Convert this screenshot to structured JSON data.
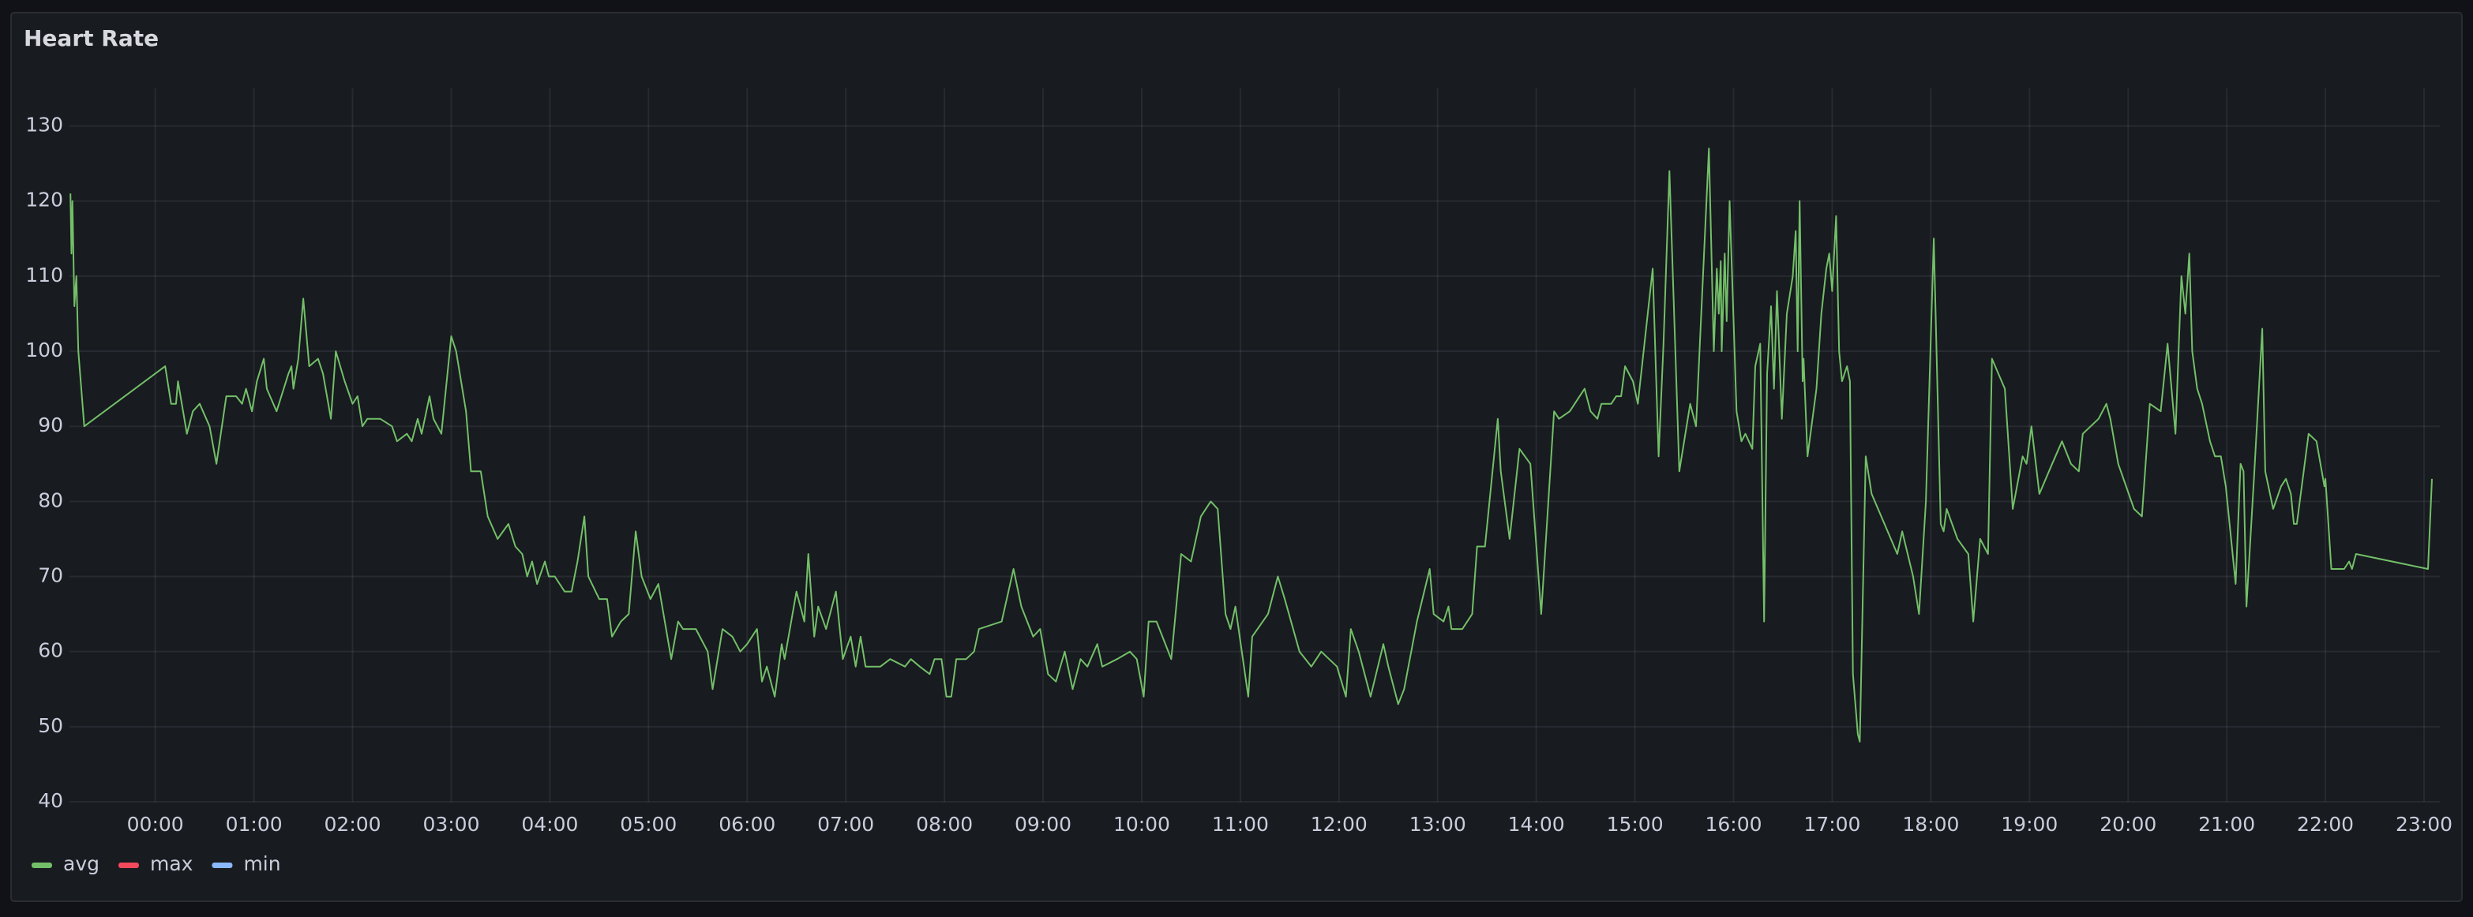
{
  "chart_data": {
    "type": "line",
    "title": "Heart Rate",
    "x": [
      -0.86,
      -0.85,
      -0.84,
      -0.82,
      -0.8,
      -0.78,
      -0.72,
      0.1,
      0.16,
      0.21,
      0.23,
      0.32,
      0.38,
      0.45,
      0.55,
      0.62,
      0.72,
      0.82,
      0.88,
      0.92,
      0.98,
      1.03,
      1.1,
      1.13,
      1.23,
      1.35,
      1.38,
      1.4,
      1.45,
      1.5,
      1.56,
      1.65,
      1.7,
      1.78,
      1.83,
      1.92,
      2.0,
      2.05,
      2.1,
      2.15,
      2.28,
      2.4,
      2.45,
      2.55,
      2.6,
      2.66,
      2.7,
      2.78,
      2.82,
      2.9,
      3.0,
      3.05,
      3.15,
      3.2,
      3.3,
      3.37,
      3.47,
      3.58,
      3.65,
      3.72,
      3.77,
      3.82,
      3.87,
      3.95,
      3.99,
      4.05,
      4.15,
      4.22,
      4.28,
      4.35,
      4.39,
      4.5,
      4.58,
      4.63,
      4.72,
      4.8,
      4.87,
      4.93,
      5.02,
      5.1,
      5.23,
      5.3,
      5.35,
      5.48,
      5.6,
      5.65,
      5.75,
      5.85,
      5.93,
      6.0,
      6.1,
      6.15,
      6.2,
      6.28,
      6.35,
      6.38,
      6.5,
      6.58,
      6.62,
      6.68,
      6.72,
      6.8,
      6.9,
      6.97,
      7.05,
      7.1,
      7.15,
      7.2,
      7.35,
      7.45,
      7.6,
      7.66,
      7.75,
      7.85,
      7.9,
      7.97,
      8.02,
      8.07,
      8.12,
      8.22,
      8.3,
      8.35,
      8.58,
      8.7,
      8.78,
      8.9,
      8.97,
      9.05,
      9.13,
      9.22,
      9.3,
      9.38,
      9.45,
      9.55,
      9.6,
      9.75,
      9.88,
      9.95,
      10.02,
      10.07,
      10.15,
      10.3,
      10.35,
      10.4,
      10.5,
      10.6,
      10.7,
      10.77,
      10.85,
      10.9,
      10.95,
      11.08,
      11.12,
      11.28,
      11.38,
      11.45,
      11.6,
      11.72,
      11.82,
      11.9,
      11.98,
      12.07,
      12.12,
      12.2,
      12.32,
      12.45,
      12.5,
      12.6,
      12.66,
      12.79,
      12.92,
      12.96,
      13.06,
      13.11,
      13.14,
      13.25,
      13.35,
      13.4,
      13.48,
      13.61,
      13.64,
      13.73,
      13.83,
      13.94,
      14.05,
      14.18,
      14.23,
      14.34,
      14.44,
      14.49,
      14.55,
      14.62,
      14.66,
      14.76,
      14.81,
      14.86,
      14.9,
      14.98,
      15.03,
      15.18,
      15.24,
      15.29,
      15.35,
      15.45,
      15.56,
      15.62,
      15.75,
      15.8,
      15.83,
      15.85,
      15.87,
      15.88,
      15.91,
      15.93,
      15.96,
      15.99,
      16.03,
      16.08,
      16.12,
      16.19,
      16.22,
      16.27,
      16.31,
      16.34,
      16.38,
      16.41,
      16.44,
      16.49,
      16.54,
      16.6,
      16.63,
      16.65,
      16.67,
      16.7,
      16.71,
      16.75,
      16.84,
      16.89,
      16.94,
      16.97,
      17.0,
      17.04,
      17.07,
      17.1,
      17.15,
      17.18,
      17.21,
      17.26,
      17.28,
      17.34,
      17.4,
      17.66,
      17.71,
      17.82,
      17.88,
      17.95,
      18.03,
      18.1,
      18.13,
      18.16,
      18.27,
      18.38,
      18.43,
      18.5,
      18.58,
      18.62,
      18.75,
      18.83,
      18.93,
      18.97,
      19.02,
      19.1,
      19.23,
      19.33,
      19.42,
      19.5,
      19.54,
      19.7,
      19.78,
      19.82,
      19.9,
      20.06,
      20.14,
      20.22,
      20.33,
      20.4,
      20.48,
      20.54,
      20.58,
      20.62,
      20.65,
      20.7,
      20.75,
      20.83,
      20.88,
      20.94,
      20.99,
      21.09,
      21.14,
      21.17,
      21.2,
      21.28,
      21.36,
      21.39,
      21.47,
      21.55,
      21.6,
      21.65,
      21.68,
      21.71,
      21.83,
      21.91,
      21.99,
      22.0,
      22.06,
      22.19,
      22.24,
      22.27,
      22.31,
      23.04,
      23.08
    ],
    "series": [
      {
        "name": "avg",
        "color": "#73bf69",
        "values": [
          121,
          113,
          120,
          106,
          110,
          100,
          90,
          98,
          93,
          93,
          96,
          89,
          92,
          93,
          90,
          85,
          94,
          94,
          93,
          95,
          92,
          96,
          99,
          95,
          92,
          97,
          98,
          95,
          99,
          107,
          98,
          99,
          97,
          91,
          100,
          96,
          93,
          94,
          90,
          91,
          91,
          90,
          88,
          89,
          88,
          91,
          89,
          94,
          91,
          89,
          102,
          100,
          92,
          84,
          84,
          78,
          75,
          77,
          74,
          73,
          70,
          72,
          69,
          72,
          70,
          70,
          68,
          68,
          72,
          78,
          70,
          67,
          67,
          62,
          64,
          65,
          76,
          70,
          67,
          69,
          59,
          64,
          63,
          63,
          60,
          55,
          63,
          62,
          60,
          61,
          63,
          56,
          58,
          54,
          61,
          59,
          68,
          64,
          73,
          62,
          66,
          63,
          68,
          59,
          62,
          58,
          62,
          58,
          58,
          59,
          58,
          59,
          58,
          57,
          59,
          59,
          54,
          54,
          59,
          59,
          60,
          63,
          64,
          71,
          66,
          62,
          63,
          57,
          56,
          60,
          55,
          59,
          58,
          61,
          58,
          59,
          60,
          59,
          54,
          64,
          64,
          59,
          66,
          73,
          72,
          78,
          80,
          79,
          65,
          63,
          66,
          54,
          62,
          65,
          70,
          67,
          60,
          58,
          60,
          59,
          58,
          54,
          63,
          60,
          54,
          61,
          58,
          53,
          55,
          64,
          71,
          65,
          64,
          66,
          63,
          63,
          65,
          74,
          74,
          91,
          84,
          75,
          87,
          85,
          65,
          92,
          91,
          92,
          94,
          95,
          92,
          91,
          93,
          93,
          94,
          94,
          98,
          96,
          93,
          111,
          86,
          101,
          124,
          84,
          93,
          90,
          127,
          100,
          111,
          105,
          112,
          100,
          113,
          104,
          120,
          108,
          92,
          88,
          89,
          87,
          98,
          101,
          64,
          97,
          106,
          95,
          108,
          91,
          105,
          110,
          116,
          100,
          120,
          96,
          99,
          86,
          95,
          105,
          111,
          113,
          108,
          118,
          100,
          96,
          98,
          96,
          57,
          49,
          48,
          86,
          81,
          73,
          76,
          70,
          65,
          80,
          115,
          77,
          76,
          79,
          75,
          73,
          64,
          75,
          73,
          99,
          95,
          79,
          86,
          85,
          90,
          81,
          85,
          88,
          85,
          84,
          89,
          91,
          93,
          91,
          85,
          79,
          78,
          93,
          92,
          101,
          89,
          110,
          105,
          113,
          100,
          95,
          93,
          88,
          86,
          86,
          82,
          69,
          85,
          84,
          66,
          84,
          103,
          84,
          79,
          82,
          83,
          81,
          77,
          77,
          89,
          88,
          82,
          83,
          71,
          71,
          72,
          71,
          73,
          71,
          83
        ]
      }
    ],
    "legend": {
      "position": "bottom-left",
      "items": [
        {
          "name": "avg",
          "color": "#73bf69"
        },
        {
          "name": "max",
          "color": "#f2495c"
        },
        {
          "name": "min",
          "color": "#8ab8ff"
        }
      ]
    },
    "xlim": [
      -0.87,
      23.16
    ],
    "xticks": [
      {
        "value": 0,
        "label": "00:00"
      },
      {
        "value": 1,
        "label": "01:00"
      },
      {
        "value": 2,
        "label": "02:00"
      },
      {
        "value": 3,
        "label": "03:00"
      },
      {
        "value": 4,
        "label": "04:00"
      },
      {
        "value": 5,
        "label": "05:00"
      },
      {
        "value": 6,
        "label": "06:00"
      },
      {
        "value": 7,
        "label": "07:00"
      },
      {
        "value": 8,
        "label": "08:00"
      },
      {
        "value": 9,
        "label": "09:00"
      },
      {
        "value": 10,
        "label": "10:00"
      },
      {
        "value": 11,
        "label": "11:00"
      },
      {
        "value": 12,
        "label": "12:00"
      },
      {
        "value": 13,
        "label": "13:00"
      },
      {
        "value": 14,
        "label": "14:00"
      },
      {
        "value": 15,
        "label": "15:00"
      },
      {
        "value": 16,
        "label": "16:00"
      },
      {
        "value": 17,
        "label": "17:00"
      },
      {
        "value": 18,
        "label": "18:00"
      },
      {
        "value": 19,
        "label": "19:00"
      },
      {
        "value": 20,
        "label": "20:00"
      },
      {
        "value": 21,
        "label": "21:00"
      },
      {
        "value": 22,
        "label": "22:00"
      },
      {
        "value": 23,
        "label": "23:00"
      }
    ],
    "ylim": [
      40,
      135
    ],
    "yticks": [
      40,
      50,
      60,
      70,
      80,
      90,
      100,
      110,
      120,
      130
    ],
    "grid": true
  }
}
